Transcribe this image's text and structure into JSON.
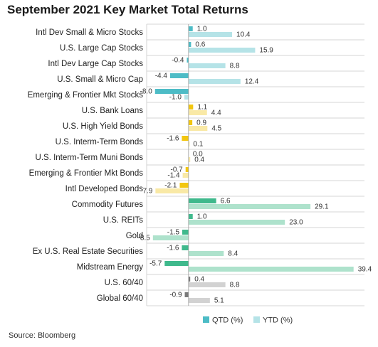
{
  "chart_data": {
    "type": "bar",
    "orientation": "horizontal",
    "title": "September 2021 Key Market Total Returns",
    "categories": [
      "Intl Dev Small & Micro Stocks",
      "U.S. Large Cap Stocks",
      "Intl Dev Large Cap Stocks",
      "U.S. Small & Micro Cap",
      "Emerging & Frontier Mkt Stocks",
      "U.S. Bank Loans",
      "U.S. High Yield Bonds",
      "U.S. Interm-Term Bonds",
      "U.S. Interm-Term Muni Bonds",
      "Emerging & Frontier Mkt Bonds",
      "Intl Developed Bonds",
      "Commodity Futures",
      "U.S. REITs",
      "Gold",
      "Ex U.S. Real Estate Securities",
      "Midstream Energy",
      "U.S. 60/40",
      "Global 60/40"
    ],
    "series": [
      {
        "name": "QTD (%)",
        "values": [
          1.0,
          0.6,
          -0.4,
          -4.4,
          -8.0,
          1.1,
          0.9,
          -1.6,
          0.0,
          -0.7,
          -2.1,
          6.6,
          1.0,
          -1.5,
          -1.6,
          -5.7,
          0.4,
          -0.9
        ],
        "labels": [
          "1.0",
          "0.6",
          "-0.4",
          "-4.4",
          "-8.0",
          "1.1",
          "0.9",
          "-1.6",
          "0.0",
          "-0.7",
          "-2.1",
          "6.6",
          "1.0",
          "-1.5",
          "-1.6",
          "-5.7",
          "0.4",
          "-0.9"
        ]
      },
      {
        "name": "YTD (%)",
        "values": [
          10.4,
          15.9,
          8.8,
          12.4,
          -1.0,
          4.4,
          4.5,
          0.1,
          0.4,
          -1.4,
          -7.9,
          29.1,
          23.0,
          -8.5,
          8.4,
          39.4,
          8.8,
          5.1
        ],
        "labels": [
          "10.4",
          "15.9",
          "8.8",
          "12.4",
          "-1.0",
          "4.4",
          "4.5",
          "0.1",
          "0.4",
          "-1.4",
          "-7.9",
          "29.1",
          "23.0",
          "-8.5",
          "8.4",
          "39.4",
          "8.8",
          "5.1"
        ]
      }
    ],
    "groups": [
      "equity",
      "equity",
      "equity",
      "equity",
      "equity",
      "fixed",
      "fixed",
      "fixed",
      "fixed",
      "fixed",
      "fixed",
      "real",
      "real",
      "real",
      "real",
      "real",
      "balanced",
      "balanced"
    ],
    "colors": {
      "equity": {
        "qtd": "#4dbcc6",
        "ytd": "#b5e3e7"
      },
      "fixed": {
        "qtd": "#f2c60f",
        "ytd": "#f9e9a6"
      },
      "real": {
        "qtd": "#3fb98c",
        "ytd": "#aee2cc"
      },
      "balanced": {
        "qtd": "#7a7a7a",
        "ytd": "#d2d2d2"
      },
      "legend_qtd": "#4dbcc6",
      "legend_ytd": "#b5e3e7",
      "separator": "#c8c8c8",
      "axis": "#9a9a9a"
    },
    "xlim": [
      -10,
      42
    ],
    "legend": {
      "position": "bottom",
      "entries": [
        "QTD (%)",
        "YTD (%)"
      ]
    },
    "source": "Source: Bloomberg"
  }
}
